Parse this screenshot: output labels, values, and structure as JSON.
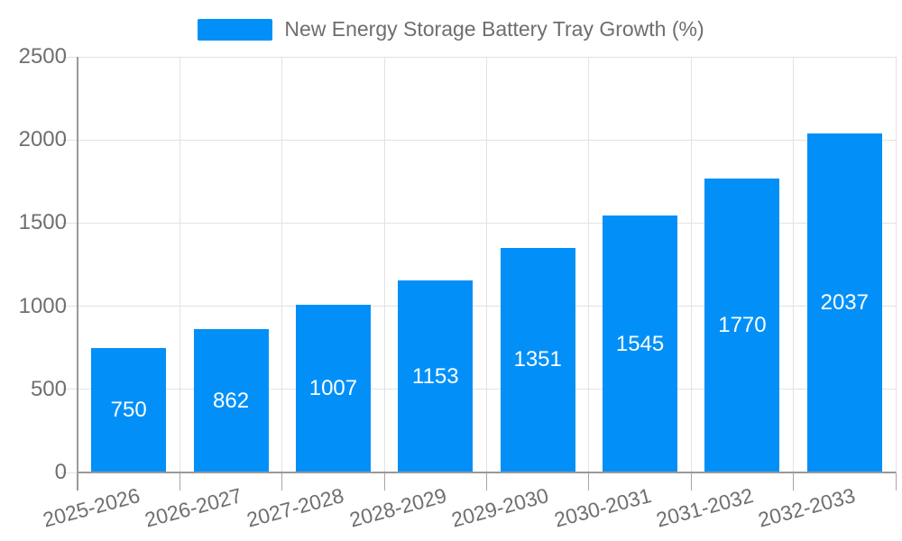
{
  "legend": {
    "label": "New Energy Storage Battery Tray Growth (%)"
  },
  "chart_data": {
    "type": "bar",
    "title": "New Energy Storage Battery Tray Growth (%)",
    "categories": [
      "2025-2026",
      "2026-2027",
      "2027-2028",
      "2028-2029",
      "2029-2030",
      "2030-2031",
      "2031-2032",
      "2032-2033"
    ],
    "values": [
      750,
      862,
      1007,
      1153,
      1351,
      1545,
      1770,
      2037
    ],
    "xlabel": "",
    "ylabel": "",
    "ylim": [
      0,
      2500
    ],
    "yticks": [
      0,
      500,
      1000,
      1500,
      2000,
      2500
    ],
    "grid": true,
    "legend_position": "top-center",
    "value_labels": "inside-center"
  },
  "colors": {
    "bar": "#0290f8",
    "grid": "#e2e2e2",
    "axis": "#999999",
    "tick": "#a6a6a6",
    "text": "#6f6f6f",
    "value_label": "#ffffff",
    "background": "#ffffff"
  }
}
